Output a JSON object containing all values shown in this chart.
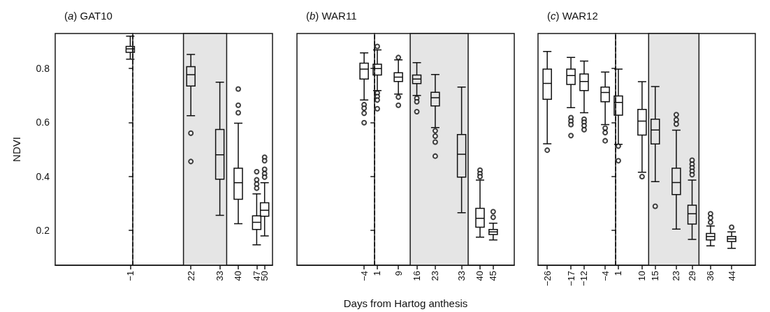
{
  "chart_data": [
    {
      "type": "box",
      "title": "(a) GAT10",
      "ylabel": "NDVI",
      "x": [
        -1,
        22,
        33,
        40,
        47,
        50
      ],
      "boxes": [
        {
          "low": 0.835,
          "q1": 0.86,
          "median": 0.873,
          "q3": 0.882,
          "high": 0.92
        },
        {
          "low": 0.625,
          "q1": 0.735,
          "median": 0.777,
          "q3": 0.807,
          "high": 0.852,
          "outliers": [
            0.56,
            0.455
          ]
        },
        {
          "low": 0.255,
          "q1": 0.389,
          "median": 0.48,
          "q3": 0.574,
          "high": 0.749
        },
        {
          "low": 0.224,
          "q1": 0.315,
          "median": 0.376,
          "q3": 0.43,
          "high": 0.597,
          "outliers": [
            0.724,
            0.664,
            0.636
          ]
        },
        {
          "low": 0.146,
          "q1": 0.203,
          "median": 0.229,
          "q3": 0.253,
          "high": 0.335,
          "outliers": [
            0.417,
            0.387,
            0.371,
            0.356
          ]
        },
        {
          "low": 0.179,
          "q1": 0.252,
          "median": 0.274,
          "q3": 0.302,
          "high": 0.376,
          "outliers": [
            0.471,
            0.458,
            0.426,
            0.41,
            0.397
          ]
        }
      ],
      "xlim": [
        -29.5,
        53
      ],
      "xticks": [
        {
          "value": -1,
          "label": "−1"
        },
        22,
        33,
        40,
        47,
        50
      ],
      "ylim": [
        0.07,
        0.93
      ],
      "yticks": [
        0.2,
        0.4,
        0.6,
        0.8
      ],
      "ref_lines": [
        {
          "axis": "x",
          "value": 0,
          "line_style": "dashed"
        }
      ],
      "bands": [
        {
          "axis": "x",
          "from": 19.2,
          "to": 35.6,
          "color": "#e5e5e5"
        }
      ]
    },
    {
      "type": "box",
      "title": "(b) WAR11",
      "xlabel": "Days from Hartog anthesis",
      "x": [
        -4,
        1,
        9,
        16,
        23,
        33,
        40,
        45
      ],
      "boxes": [
        {
          "low": 0.683,
          "q1": 0.761,
          "median": 0.798,
          "q3": 0.82,
          "high": 0.858,
          "outliers": [
            0.666,
            0.653,
            0.634,
            0.599
          ]
        },
        {
          "low": 0.718,
          "q1": 0.776,
          "median": 0.8,
          "q3": 0.816,
          "high": 0.869,
          "outliers": [
            0.882,
            0.709,
            0.696,
            0.683,
            0.651
          ]
        },
        {
          "low": 0.705,
          "q1": 0.752,
          "median": 0.768,
          "q3": 0.784,
          "high": 0.832,
          "outliers": [
            0.841,
            0.694,
            0.664
          ]
        },
        {
          "low": 0.7,
          "q1": 0.744,
          "median": 0.761,
          "q3": 0.776,
          "high": 0.822,
          "outliers": [
            0.69,
            0.677,
            0.64
          ]
        },
        {
          "low": 0.581,
          "q1": 0.661,
          "median": 0.692,
          "q3": 0.712,
          "high": 0.778,
          "outliers": [
            0.569,
            0.549,
            0.527,
            0.475
          ]
        },
        {
          "low": 0.265,
          "q1": 0.397,
          "median": 0.482,
          "q3": 0.555,
          "high": 0.731
        },
        {
          "low": 0.174,
          "q1": 0.211,
          "median": 0.244,
          "q3": 0.281,
          "high": 0.386,
          "outliers": [
            0.423,
            0.41,
            0.399
          ]
        },
        {
          "low": 0.164,
          "q1": 0.184,
          "median": 0.194,
          "q3": 0.203,
          "high": 0.226,
          "outliers": [
            0.269,
            0.248
          ]
        }
      ],
      "xlim": [
        -29.5,
        53
      ],
      "xticks": [
        {
          "value": -4,
          "label": "−4"
        },
        1,
        9,
        16,
        23,
        33,
        40,
        45
      ],
      "ylim": [
        0.07,
        0.93
      ],
      "yticks": [
        0.2,
        0.4,
        0.6,
        0.8
      ],
      "tick_labels": "x",
      "ref_lines": [
        {
          "axis": "x",
          "value": 0,
          "line_style": "dashed"
        }
      ],
      "bands": [
        {
          "axis": "x",
          "from": 13.5,
          "to": 35.5,
          "color": "#e5e5e5"
        }
      ]
    },
    {
      "type": "box",
      "title": "(c) WAR12",
      "x": [
        -26,
        -17,
        -12,
        -4,
        1,
        10,
        15,
        23,
        29,
        36,
        44
      ],
      "boxes": [
        {
          "low": 0.521,
          "q1": 0.686,
          "median": 0.745,
          "q3": 0.798,
          "high": 0.863,
          "outliers": [
            0.497
          ]
        },
        {
          "low": 0.655,
          "q1": 0.741,
          "median": 0.774,
          "q3": 0.798,
          "high": 0.841,
          "outliers": [
            0.618,
            0.605,
            0.592,
            0.551
          ]
        },
        {
          "low": 0.636,
          "q1": 0.718,
          "median": 0.752,
          "q3": 0.78,
          "high": 0.828,
          "outliers": [
            0.612,
            0.601,
            0.588,
            0.573
          ]
        },
        {
          "low": 0.592,
          "q1": 0.677,
          "median": 0.711,
          "q3": 0.731,
          "high": 0.787,
          "outliers": [
            0.579,
            0.562,
            0.532
          ]
        },
        {
          "low": 0.519,
          "q1": 0.627,
          "median": 0.674,
          "q3": 0.698,
          "high": 0.798,
          "outliers": [
            0.512,
            0.458
          ]
        },
        {
          "low": 0.415,
          "q1": 0.553,
          "median": 0.605,
          "q3": 0.648,
          "high": 0.751,
          "outliers": [
            0.399
          ]
        },
        {
          "low": 0.38,
          "q1": 0.52,
          "median": 0.572,
          "q3": 0.612,
          "high": 0.733,
          "outliers": [
            0.289
          ]
        },
        {
          "low": 0.204,
          "q1": 0.332,
          "median": 0.377,
          "q3": 0.43,
          "high": 0.571,
          "outliers": [
            0.629,
            0.61,
            0.594
          ]
        },
        {
          "low": 0.166,
          "q1": 0.223,
          "median": 0.261,
          "q3": 0.293,
          "high": 0.386,
          "outliers": [
            0.46,
            0.445,
            0.432,
            0.419,
            0.406
          ]
        },
        {
          "low": 0.142,
          "q1": 0.164,
          "median": 0.177,
          "q3": 0.188,
          "high": 0.216,
          "outliers": [
            0.261,
            0.246,
            0.229
          ]
        },
        {
          "low": 0.133,
          "q1": 0.158,
          "median": 0.168,
          "q3": 0.177,
          "high": 0.194,
          "outliers": [
            0.211
          ]
        }
      ],
      "xlim": [
        -29.5,
        53
      ],
      "xticks": [
        {
          "value": -26,
          "label": "−26"
        },
        {
          "value": -17,
          "label": "−17"
        },
        {
          "value": -12,
          "label": "−12"
        },
        {
          "value": -4,
          "label": "−4"
        },
        1,
        10,
        15,
        23,
        29,
        36,
        44
      ],
      "ylim": [
        0.07,
        0.93
      ],
      "yticks": [
        0.2,
        0.4,
        0.6,
        0.8
      ],
      "tick_labels": "x",
      "ref_lines": [
        {
          "axis": "x",
          "value": 0,
          "line_style": "dashed"
        }
      ],
      "bands": [
        {
          "axis": "x",
          "from": 12.5,
          "to": 31.6,
          "color": "#e5e5e5"
        }
      ]
    }
  ]
}
